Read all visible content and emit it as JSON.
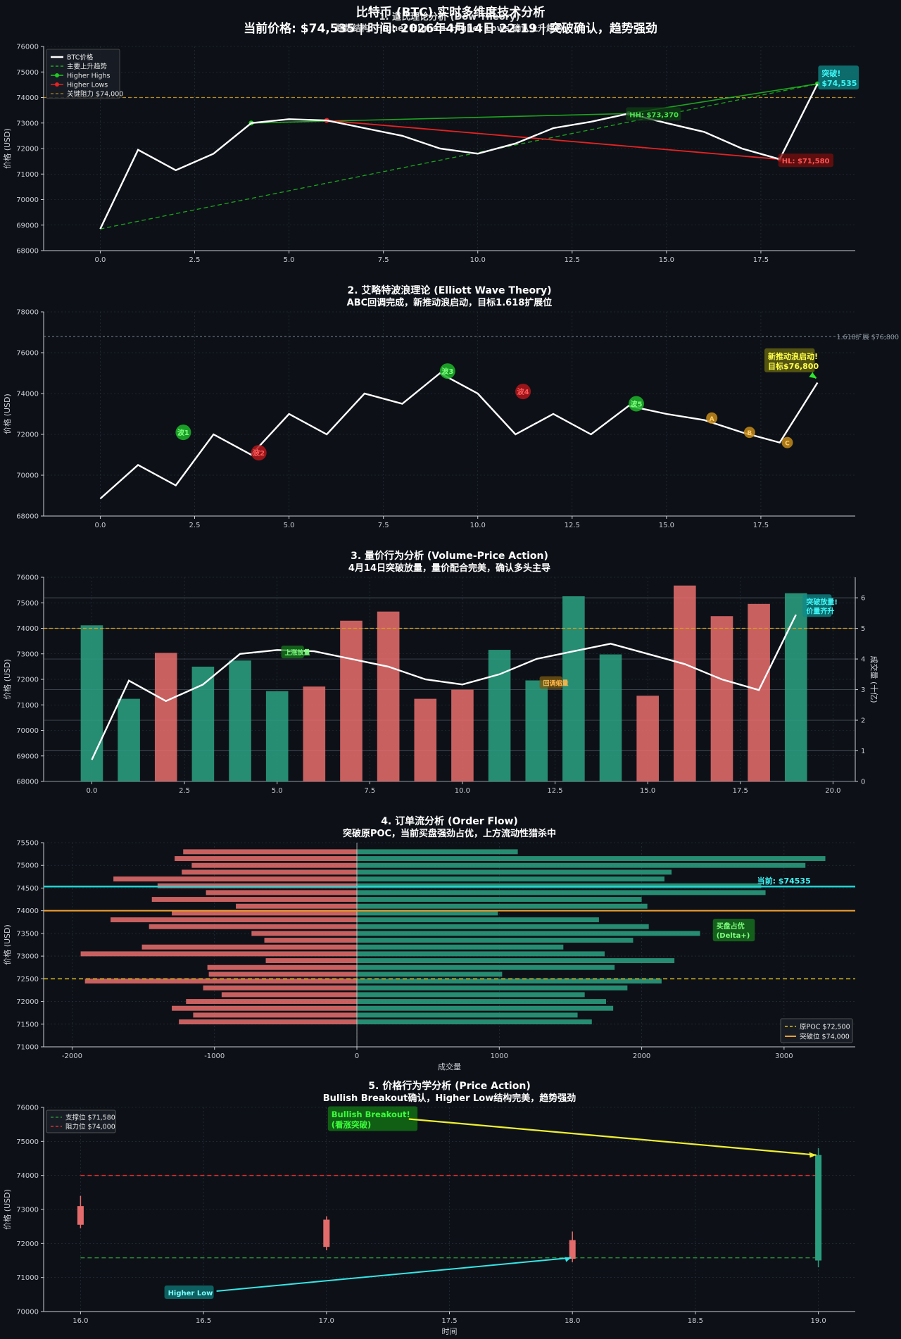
{
  "page_title": {
    "line1": "比特币 (BTC) 实时多维度技术分析",
    "line2": "当前价格: $74,535 | 时间: 2026年4月14日 22:19 | 突破确认，趋势强劲"
  },
  "colors": {
    "background": "#0d1117",
    "price_line": "#ffffff",
    "bull": "#2a9d7f",
    "bear": "#e46b6b",
    "resistance": "#d4a017",
    "support_green": "#2e8b3a",
    "cyan": "#22d3d3",
    "trend_green": "#22c922",
    "lows_red": "#e62222"
  },
  "chart_data": [
    {
      "type": "line",
      "title": "1. 道氏理论分析 (Dow Theory)",
      "subtitle": "趋势结构: Higher Highs + Higher Lows 确认上升趋势",
      "xlabel": "",
      "ylabel": "价格 (USD)",
      "xlim": [
        -1.5,
        20
      ],
      "ylim": [
        68000,
        76000
      ],
      "xticks": [
        0,
        2.5,
        5,
        7.5,
        10,
        12.5,
        15,
        17.5
      ],
      "xtick_labels": [
        "0.0",
        "2.5",
        "5.0",
        "7.5",
        "10.0",
        "12.5",
        "15.0",
        "17.5"
      ],
      "yticks": [
        68000,
        69000,
        70000,
        71000,
        72000,
        73000,
        74000,
        75000,
        76000
      ],
      "ytick_labels": [
        "68000",
        "69000",
        "70000",
        "71000",
        "72000",
        "73000",
        "74000",
        "75000",
        "76000"
      ],
      "x": [
        0,
        1,
        2,
        3,
        4,
        5,
        6,
        7,
        8,
        9,
        10,
        11,
        12,
        13,
        14,
        15,
        16,
        17,
        18,
        19
      ],
      "price": [
        68850,
        71950,
        71150,
        71800,
        73000,
        73150,
        73100,
        72800,
        72500,
        72000,
        71800,
        72200,
        72800,
        73050,
        73370,
        73000,
        72650,
        72000,
        71580,
        74535
      ],
      "trendline": {
        "x": [
          0,
          19
        ],
        "y": [
          68850,
          74535
        ]
      },
      "higher_highs": {
        "x": [
          4,
          14,
          19
        ],
        "y": [
          73000,
          73370,
          74535
        ]
      },
      "higher_lows": {
        "x": [
          6,
          18
        ],
        "y": [
          73100,
          71580
        ]
      },
      "resistance": 74000,
      "legend": [
        "BTC价格",
        "主要上升趋势",
        "Higher Highs",
        "Higher Lows",
        "关键阻力 $74,000"
      ],
      "annotations": [
        {
          "text": "HH: $73,370",
          "x": 14,
          "y": 73370
        },
        {
          "text": "HL: $71,580",
          "x": 18,
          "y": 71580
        },
        {
          "text": "突破!",
          "x": 19,
          "y": 74535
        },
        {
          "text": "$74,535",
          "x": 19,
          "y": 74535
        }
      ]
    },
    {
      "type": "line",
      "title": "2. 艾略特波浪理论 (Elliott Wave Theory)",
      "subtitle": "ABC回调完成，新推动浪启动，目标1.618扩展位",
      "xlabel": "",
      "ylabel": "价格 (USD)",
      "xlim": [
        -1.5,
        20
      ],
      "ylim": [
        68000,
        78000
      ],
      "xticks": [
        0,
        2.5,
        5,
        7.5,
        10,
        12.5,
        15,
        17.5
      ],
      "xtick_labels": [
        "0.0",
        "2.5",
        "5.0",
        "7.5",
        "10.0",
        "12.5",
        "15.0",
        "17.5"
      ],
      "yticks": [
        68000,
        70000,
        72000,
        74000,
        76000,
        78000
      ],
      "ytick_labels": [
        "68000",
        "70000",
        "72000",
        "74000",
        "76000",
        "78000"
      ],
      "x": [
        0,
        1,
        2,
        3,
        4,
        5,
        6,
        7,
        8,
        9,
        10,
        11,
        12,
        13,
        14,
        15,
        16,
        17,
        18,
        19
      ],
      "price": [
        68850,
        70500,
        69500,
        72000,
        71000,
        73000,
        72000,
        74000,
        73500,
        75000,
        74000,
        72000,
        73000,
        72000,
        73400,
        73000,
        72700,
        72100,
        71600,
        74535
      ],
      "waves": [
        {
          "label": "波1",
          "x": 2.2,
          "y": 72100,
          "kind": "impulse"
        },
        {
          "label": "波2",
          "x": 4.2,
          "y": 71100,
          "kind": "corrective"
        },
        {
          "label": "波3",
          "x": 9.2,
          "y": 75100,
          "kind": "impulse"
        },
        {
          "label": "波4",
          "x": 11.2,
          "y": 74100,
          "kind": "corrective"
        },
        {
          "label": "波5",
          "x": 14.2,
          "y": 73500,
          "kind": "impulse"
        },
        {
          "label": "A",
          "x": 16.2,
          "y": 72800,
          "kind": "abc"
        },
        {
          "label": "B",
          "x": 17.2,
          "y": 72100,
          "kind": "abc"
        },
        {
          "label": "C",
          "x": 18.2,
          "y": 71600,
          "kind": "abc"
        }
      ],
      "fib_target": 76800,
      "fib_label": "1.618扩展 $76,800",
      "annotations": [
        {
          "text": "新推动浪启动!",
          "x": 17.8,
          "y": 75800
        },
        {
          "text": "目标$76,800",
          "x": 17.8,
          "y": 75800
        }
      ]
    },
    {
      "type": "bar+line",
      "title": "3. 量价行为分析 (Volume-Price Action)",
      "subtitle": "4月14日突破放量，量价配合完美，确认多头主导",
      "xlabel": "",
      "ylabel": "价格 (USD)",
      "ylabel2": "成交量 (十亿)",
      "xlim": [
        -1.3,
        20.6
      ],
      "ylim": [
        68000,
        76000
      ],
      "ylim2": [
        0,
        6.67
      ],
      "xticks": [
        0,
        2.5,
        5,
        7.5,
        10,
        12.5,
        15,
        17.5,
        20
      ],
      "xtick_labels": [
        "0.0",
        "2.5",
        "5.0",
        "7.5",
        "10.0",
        "12.5",
        "15.0",
        "17.5",
        "20.0"
      ],
      "yticks": [
        68000,
        69000,
        70000,
        71000,
        72000,
        73000,
        74000,
        75000,
        76000
      ],
      "ytick_labels": [
        "68000",
        "69000",
        "70000",
        "71000",
        "72000",
        "73000",
        "74000",
        "75000",
        "76000"
      ],
      "yticks2": [
        0,
        1,
        2,
        3,
        4,
        5,
        6
      ],
      "ytick2_labels": [
        "0",
        "1",
        "2",
        "3",
        "4",
        "5",
        "6"
      ],
      "x": [
        0,
        1,
        2,
        3,
        4,
        5,
        6,
        7,
        8,
        9,
        10,
        11,
        12,
        13,
        14,
        15,
        16,
        17,
        18,
        19
      ],
      "price": [
        68850,
        71950,
        71150,
        71800,
        73000,
        73150,
        73100,
        72800,
        72500,
        72000,
        71800,
        72200,
        72800,
        73100,
        73400,
        73000,
        72600,
        72000,
        71580,
        74535
      ],
      "volume": [
        5.1,
        2.7,
        4.2,
        3.75,
        3.95,
        2.95,
        3.1,
        5.25,
        5.55,
        2.7,
        3.0,
        4.3,
        3.3,
        6.05,
        4.15,
        2.8,
        6.4,
        5.4,
        5.8,
        6.15
      ],
      "volume_direction": [
        "up",
        "up",
        "down",
        "up",
        "up",
        "up",
        "down",
        "down",
        "down",
        "down",
        "down",
        "up",
        "up",
        "up",
        "up",
        "down",
        "down",
        "down",
        "down",
        "up"
      ],
      "resistance": 74000,
      "annotations": [
        {
          "text": "上涨放量",
          "x": 5.3,
          "y": 73100
        },
        {
          "text": "回调缩量",
          "x": 12.5,
          "y": 71900
        },
        {
          "text": "突破放量!",
          "x": 19.6,
          "y": 75000
        },
        {
          "text": "价量齐升",
          "x": 19.6,
          "y": 74650
        }
      ]
    },
    {
      "type": "horizontal-bar",
      "title": "4. 订单流分析 (Order Flow)",
      "subtitle": "突破原POC，当前买盘强劲占优，上方流动性猎杀中",
      "xlabel": "成交量",
      "ylabel": "价格 (USD)",
      "xlim": [
        -2200,
        3500
      ],
      "ylim": [
        71000,
        75500
      ],
      "xticks": [
        -2000,
        -1000,
        0,
        1000,
        2000,
        3000
      ],
      "xtick_labels": [
        "-2000",
        "-1000",
        "0",
        "1000",
        "2000",
        "3000"
      ],
      "yticks": [
        71000,
        71500,
        72000,
        72500,
        73000,
        73500,
        74000,
        74500,
        75000,
        75500
      ],
      "ytick_labels": [
        "71000",
        "71500",
        "72000",
        "72500",
        "73000",
        "73500",
        "74000",
        "74500",
        "75000",
        "75500"
      ],
      "price_levels": [
        75300,
        75150,
        75000,
        74850,
        74700,
        74550,
        74400,
        74250,
        74100,
        73950,
        73800,
        73650,
        73500,
        73350,
        73200,
        73050,
        72900,
        72750,
        72600,
        72450,
        72300,
        72150,
        72000,
        71850,
        71700,
        71550
      ],
      "sell_volume": [
        -1220,
        -1280,
        -1160,
        -1230,
        -1710,
        -1400,
        -1060,
        -1440,
        -850,
        -1300,
        -1730,
        -1460,
        -740,
        -650,
        -1510,
        -1940,
        -640,
        -1050,
        -1040,
        -1910,
        -1080,
        -950,
        -1200,
        -1300,
        -1150,
        -1250
      ],
      "buy_volume": [
        1130,
        3290,
        3150,
        2210,
        2160,
        2840,
        2870,
        2000,
        2040,
        990,
        1700,
        2050,
        2410,
        1940,
        1450,
        1740,
        2230,
        1810,
        1020,
        2140,
        1900,
        1600,
        1750,
        1800,
        1550,
        1650
      ],
      "poc": 72500,
      "breakout": 74000,
      "current": 74535,
      "legend": [
        "原POC $72,500",
        "突破位 $74,000"
      ],
      "annotations": [
        {
          "text": "当前: $74535",
          "x": 2880,
          "y": 74535
        },
        {
          "text": "买盘占优",
          "x": 2500,
          "y": 73620
        },
        {
          "text": "(Delta+)",
          "x": 2500,
          "y": 73620
        }
      ]
    },
    {
      "type": "candlestick",
      "title": "5. 价格行为学分析 (Price Action)",
      "subtitle": "Bullish Breakout确认，Higher Low结构完美，趋势强劲",
      "xlabel": "时间",
      "ylabel": "价格 (USD)",
      "xlim": [
        15.85,
        19.15
      ],
      "ylim": [
        70000,
        76000
      ],
      "xticks": [
        16,
        16.5,
        17,
        17.5,
        18,
        18.5,
        19
      ],
      "xtick_labels": [
        "16.0",
        "16.5",
        "17.0",
        "17.5",
        "18.0",
        "18.5",
        "19.0"
      ],
      "yticks": [
        70000,
        71000,
        72000,
        73000,
        74000,
        75000,
        76000
      ],
      "ytick_labels": [
        "70000",
        "71000",
        "72000",
        "73000",
        "74000",
        "75000",
        "76000"
      ],
      "candles": [
        {
          "x": 16,
          "open": 73100,
          "high": 73400,
          "low": 72450,
          "close": 72550
        },
        {
          "x": 17,
          "open": 72700,
          "high": 72800,
          "low": 71800,
          "close": 71900
        },
        {
          "x": 18,
          "open": 72100,
          "high": 72350,
          "low": 71450,
          "close": 71550
        },
        {
          "x": 19,
          "open": 71500,
          "high": 74800,
          "low": 71300,
          "close": 74600
        }
      ],
      "support": 71580,
      "resistance": 74000,
      "legend": [
        "支撑位 $71,580",
        "阻力位 $74,000"
      ],
      "annotations": [
        {
          "text": "Bullish Breakout!",
          "x": 17.0,
          "y": 75700
        },
        {
          "text": "(看涨突破)",
          "x": 17.0,
          "y": 75700
        },
        {
          "text": "Higher Low",
          "x": 16.55,
          "y": 70600
        }
      ]
    }
  ]
}
